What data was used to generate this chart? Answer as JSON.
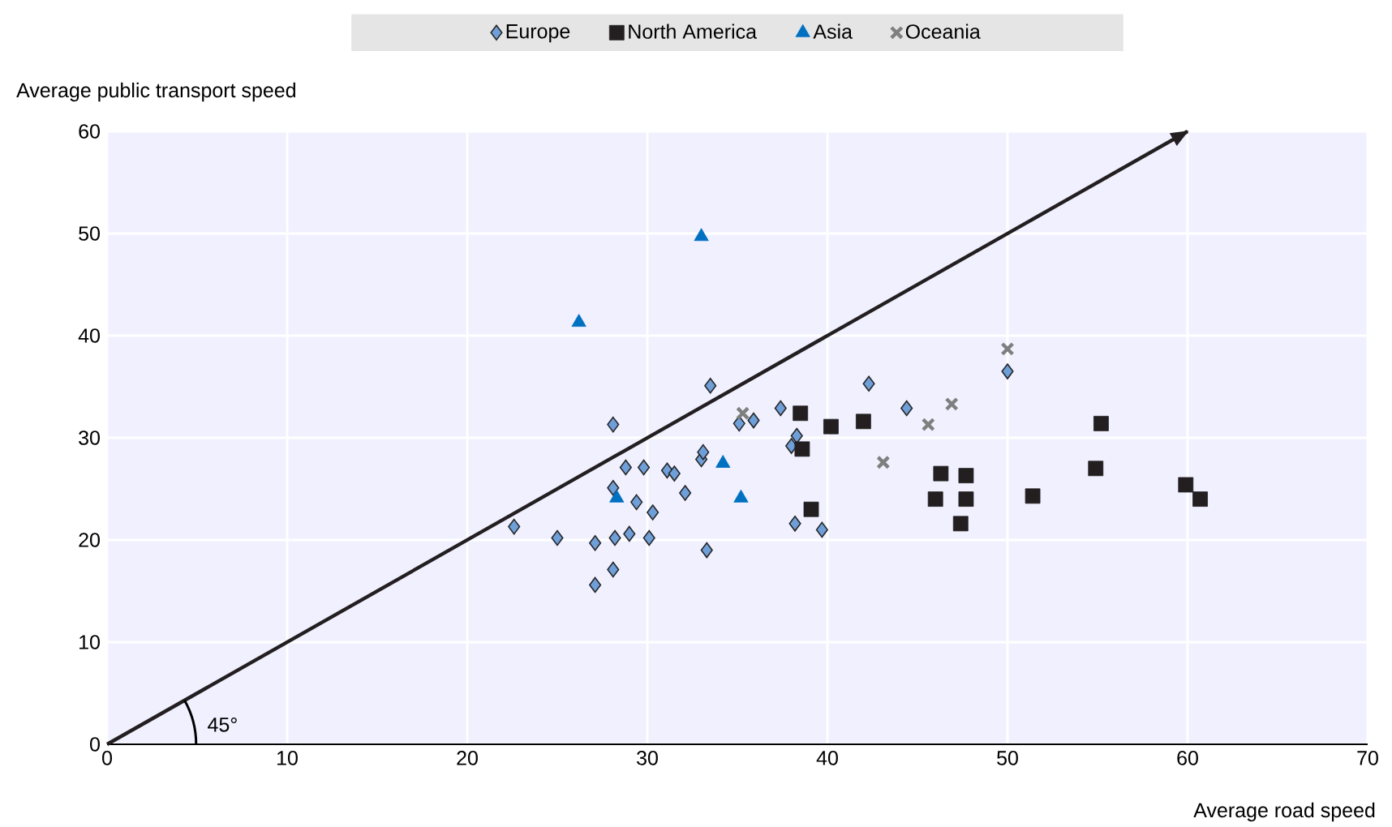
{
  "chart_data": {
    "type": "scatter",
    "xlabel": "Average road speed",
    "ylabel": "Average public transport speed",
    "xlim": [
      0,
      70
    ],
    "ylim": [
      0,
      60
    ],
    "xticks": [
      0,
      10,
      20,
      30,
      40,
      50,
      60,
      70
    ],
    "yticks": [
      0,
      10,
      20,
      30,
      40,
      50,
      60
    ],
    "grid": true,
    "legend": "top",
    "annotations": [
      {
        "text": "45°",
        "x": 4.3,
        "y": 4.3
      }
    ],
    "series": [
      {
        "name": "Europe",
        "color": "#6f9fd8",
        "marker": "diamond",
        "x": [
          22.6,
          25.0,
          27.1,
          27.1,
          28.1,
          28.2,
          29.0,
          30.1,
          28.1,
          28.1,
          28.8,
          29.8,
          29.4,
          30.3,
          31.1,
          31.5,
          32.1,
          33.0,
          33.1,
          33.5,
          33.3,
          35.1,
          35.9,
          37.4,
          38.3,
          38.0,
          38.2,
          39.7,
          42.3,
          44.4,
          50.0
        ],
        "values": [
          21.3,
          20.2,
          19.7,
          15.6,
          17.1,
          20.2,
          20.6,
          20.2,
          25.1,
          31.3,
          27.1,
          27.1,
          23.7,
          22.7,
          26.8,
          26.5,
          24.6,
          27.9,
          28.6,
          35.1,
          19.0,
          31.4,
          31.7,
          32.9,
          30.2,
          29.2,
          21.6,
          21.0,
          35.3,
          32.9,
          36.5
        ]
      },
      {
        "name": "North America",
        "color": "#231f20",
        "marker": "square",
        "x": [
          38.5,
          40.2,
          42.0,
          38.6,
          39.1,
          55.2,
          46.3,
          47.7,
          46.0,
          47.7,
          47.4,
          51.4,
          54.9,
          59.9,
          60.7
        ],
        "values": [
          32.4,
          31.1,
          31.6,
          28.9,
          23.0,
          31.4,
          26.5,
          26.3,
          24.0,
          24.0,
          21.6,
          24.3,
          27.0,
          25.4,
          24.0
        ]
      },
      {
        "name": "Asia",
        "color": "#0070c0",
        "marker": "triangle",
        "x": [
          33.0,
          26.2,
          28.3,
          34.2,
          35.2
        ],
        "values": [
          49.7,
          41.3,
          24.1,
          27.5,
          24.1
        ]
      },
      {
        "name": "Oceania",
        "color": "#7f7f7f",
        "marker": "cross",
        "x": [
          35.3,
          50.0,
          46.9,
          45.6,
          43.1
        ],
        "values": [
          32.4,
          38.7,
          33.3,
          31.3,
          27.6
        ]
      },
      {
        "type": "line",
        "color": "#231f20",
        "marker": "none",
        "x": [
          0,
          60
        ],
        "values": [
          0,
          60
        ]
      }
    ]
  }
}
